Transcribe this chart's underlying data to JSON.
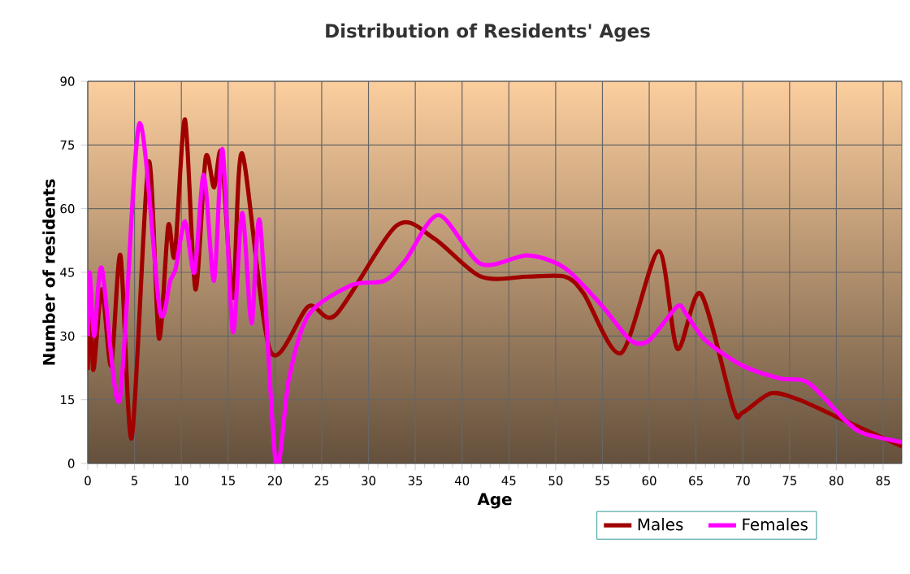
{
  "chart_data": {
    "type": "line",
    "title": "Distribution of Residents' Ages",
    "xlabel": "Age",
    "ylabel": "Number of residents",
    "xlim": [
      0,
      87
    ],
    "ylim": [
      0,
      90
    ],
    "xticks": [
      0,
      5,
      10,
      15,
      20,
      25,
      30,
      35,
      40,
      45,
      50,
      55,
      60,
      65,
      70,
      75,
      80,
      85
    ],
    "yticks": [
      0,
      15,
      30,
      45,
      60,
      75,
      90
    ],
    "grid": true,
    "legend": "bottom right",
    "series": [
      {
        "name": "Males",
        "color": "#a00000",
        "x": [
          0,
          0.3,
          0.6,
          1.5,
          2.5,
          3.5,
          4.7,
          6.5,
          7.6,
          8.6,
          9.3,
          10.4,
          11.5,
          12.6,
          13.5,
          14.3,
          15.5,
          16.5,
          19.5,
          23.6,
          26.5,
          33,
          37,
          42,
          47,
          51,
          53,
          57,
          61,
          63,
          65.5,
          69,
          70,
          73,
          76,
          80,
          82,
          87
        ],
        "values": [
          22,
          41,
          22,
          41,
          23,
          49,
          6,
          71,
          29.5,
          56,
          49,
          81,
          41,
          72,
          65,
          73,
          39,
          73,
          26.5,
          37,
          35,
          56,
          53,
          44,
          44,
          44,
          40,
          26,
          50,
          27,
          40,
          13,
          12,
          16.5,
          15,
          11,
          9,
          4
        ]
      },
      {
        "name": "Females",
        "color": "#ff00ff",
        "x": [
          0,
          0.2,
          0.7,
          1.5,
          3.4,
          5.5,
          7.7,
          8.8,
          9.4,
          10.4,
          11.4,
          12.4,
          13.5,
          14.4,
          15.5,
          16.5,
          17.5,
          18.4,
          20.1,
          21.5,
          23.6,
          28.2,
          31.7,
          34,
          37.5,
          42,
          47,
          51,
          55,
          58,
          60,
          63,
          64,
          66,
          70,
          74,
          77,
          81,
          83,
          87
        ],
        "values": [
          30,
          45,
          30,
          46,
          15,
          80,
          36,
          43,
          46,
          57,
          45,
          68,
          43,
          74,
          31,
          59,
          33,
          57,
          0,
          20,
          35,
          42,
          43,
          48,
          58.5,
          47,
          49,
          46,
          37,
          29,
          29,
          37,
          35,
          29,
          23,
          20,
          19,
          10,
          7,
          5
        ]
      }
    ]
  }
}
